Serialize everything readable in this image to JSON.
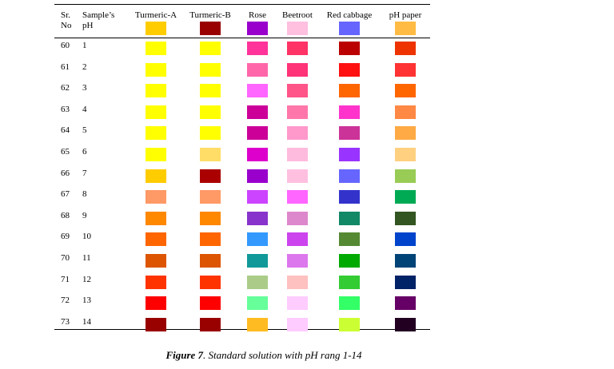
{
  "table": {
    "columns": [
      "Sr.",
      "No",
      "Sample’s",
      "pH",
      "Turmeric-A",
      "Turmeric-B",
      "Rose",
      "Beetroot",
      "Red cabbage",
      "pH paper"
    ],
    "header_colors": [
      "#ffcc00",
      "#990000",
      "#9900cc",
      "#ffc0e0",
      "#6666ff",
      "#ffbb44"
    ],
    "rows": [
      {
        "sr": 60,
        "ph": 1,
        "colors": [
          "#ffff00",
          "#ffff00",
          "#ff3399",
          "#ff3366",
          "#bb0000",
          "#ee3300"
        ]
      },
      {
        "sr": 61,
        "ph": 2,
        "colors": [
          "#ffff00",
          "#ffff00",
          "#ff66aa",
          "#ff3377",
          "#ff1111",
          "#ff3333"
        ]
      },
      {
        "sr": 62,
        "ph": 3,
        "colors": [
          "#ffff00",
          "#ffff00",
          "#ff66ff",
          "#ff5588",
          "#ff6600",
          "#ff6600"
        ]
      },
      {
        "sr": 63,
        "ph": 4,
        "colors": [
          "#ffff00",
          "#ffff00",
          "#cc0099",
          "#ff77aa",
          "#ff33cc",
          "#ff8844"
        ]
      },
      {
        "sr": 64,
        "ph": 5,
        "colors": [
          "#ffff00",
          "#ffff00",
          "#cc0099",
          "#ff99cc",
          "#cc3399",
          "#ffaa44"
        ]
      },
      {
        "sr": 65,
        "ph": 6,
        "colors": [
          "#ffff00",
          "#ffdd66",
          "#dd00cc",
          "#ffbbdd",
          "#9933ff",
          "#ffd080"
        ]
      },
      {
        "sr": 66,
        "ph": 7,
        "colors": [
          "#ffcc00",
          "#aa0000",
          "#9900cc",
          "#ffc0e0",
          "#6666ff",
          "#99cc55"
        ]
      },
      {
        "sr": 67,
        "ph": 8,
        "colors": [
          "#ff9966",
          "#ff9966",
          "#cc44ff",
          "#ff66ff",
          "#3333cc",
          "#00aa55"
        ]
      },
      {
        "sr": 68,
        "ph": 9,
        "colors": [
          "#ff8800",
          "#ff8800",
          "#8833cc",
          "#dd88cc",
          "#118866",
          "#335522"
        ]
      },
      {
        "sr": 69,
        "ph": 10,
        "colors": [
          "#ff6600",
          "#ff6600",
          "#3399ff",
          "#cc44ee",
          "#558833",
          "#0044cc"
        ]
      },
      {
        "sr": 70,
        "ph": 11,
        "colors": [
          "#dd5500",
          "#dd5500",
          "#119999",
          "#dd77ee",
          "#00aa00",
          "#004477"
        ]
      },
      {
        "sr": 71,
        "ph": 12,
        "colors": [
          "#ff3300",
          "#ff3300",
          "#aacc88",
          "#ffc0c0",
          "#33cc33",
          "#002266"
        ]
      },
      {
        "sr": 72,
        "ph": 13,
        "colors": [
          "#ff0000",
          "#ff0000",
          "#66ff99",
          "#ffccff",
          "#33ff66",
          "#660066"
        ]
      },
      {
        "sr": 73,
        "ph": 14,
        "colors": [
          "#990000",
          "#990000",
          "#ffbb22",
          "#ffccff",
          "#ccff33",
          "#220022"
        ]
      }
    ]
  },
  "caption": {
    "label": "Figure 7",
    "text": ". Standard solution with pH rang 1-14"
  }
}
